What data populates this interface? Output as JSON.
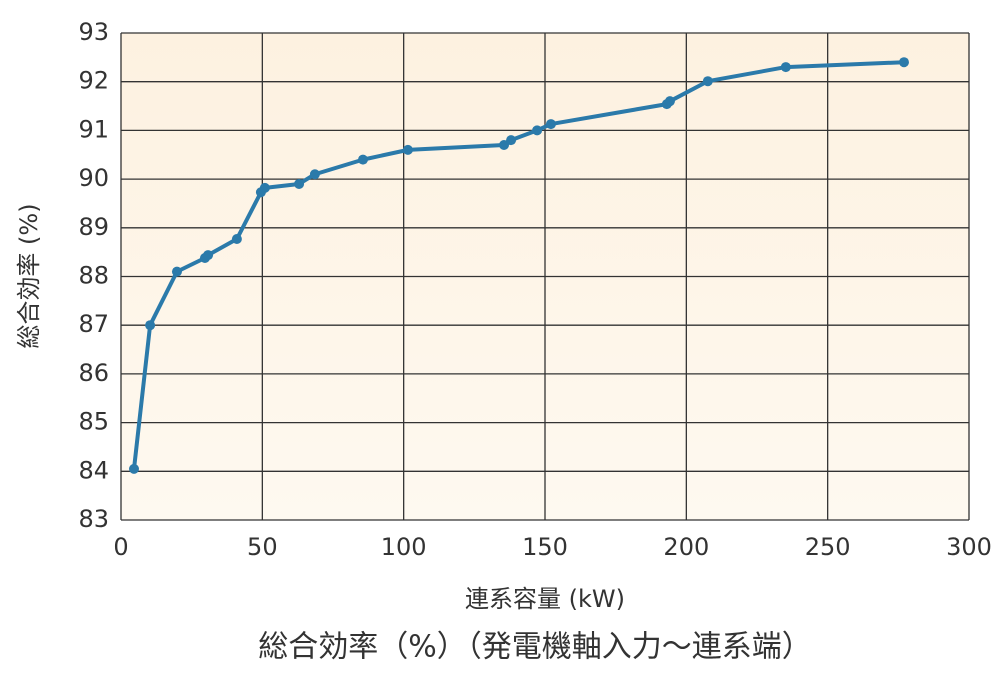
{
  "chart_data": {
    "type": "line",
    "caption": "総合効率（%）（発電機軸入力～連系端）",
    "x_label": "連系容量 (kW)",
    "y_label": "総合効率 (%)",
    "x": [
      4.6,
      10.3,
      19.8,
      29.7,
      30.8,
      41.0,
      49.5,
      50.9,
      63.0,
      68.6,
      85.6,
      101.5,
      135.5,
      138.0,
      147.2,
      152.1,
      193.1,
      194.2,
      207.6,
      235.2,
      277.0
    ],
    "series": [
      {
        "color": "#2b7aaa",
        "values": [
          84.05,
          87.0,
          88.1,
          88.38,
          88.44,
          88.77,
          89.73,
          89.82,
          89.9,
          90.1,
          90.4,
          90.6,
          90.7,
          90.8,
          91.0,
          91.13,
          91.54,
          91.6,
          92.01,
          92.3,
          92.4
        ]
      }
    ],
    "xlim": [
      0,
      300
    ],
    "xticks": [
      0,
      50,
      100,
      150,
      200,
      250,
      300
    ],
    "ylim": [
      83,
      93
    ],
    "yticks": [
      83,
      84,
      85,
      86,
      87,
      88,
      89,
      90,
      91,
      92,
      93
    ],
    "grid": true
  }
}
